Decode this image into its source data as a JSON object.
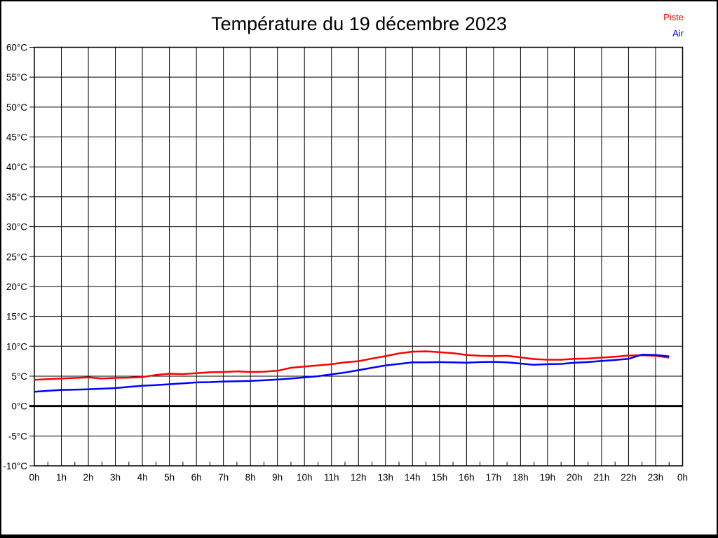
{
  "header": {
    "title": "Température du 19 décembre 2023"
  },
  "legend": {
    "piste": "Piste",
    "air": "Air",
    "piste_color": "#ff0000",
    "air_color": "#0000ff"
  },
  "chart_data": {
    "type": "line",
    "title": "Température du 19 décembre 2023",
    "xlabel": "",
    "ylabel": "",
    "xlim": [
      0,
      24
    ],
    "ylim": [
      -10,
      60
    ],
    "grid": true,
    "grid_color": "#000000",
    "zero_line_value": 0,
    "legend_position": "top-right",
    "x_tick_labels": [
      "0h",
      "1h",
      "2h",
      "3h",
      "4h",
      "5h",
      "6h",
      "7h",
      "8h",
      "9h",
      "10h",
      "11h",
      "12h",
      "13h",
      "14h",
      "15h",
      "16h",
      "17h",
      "18h",
      "19h",
      "20h",
      "21h",
      "22h",
      "23h",
      "0h"
    ],
    "x_tick_values": [
      0,
      1,
      2,
      3,
      4,
      5,
      6,
      7,
      8,
      9,
      10,
      11,
      12,
      13,
      14,
      15,
      16,
      17,
      18,
      19,
      20,
      21,
      22,
      23,
      24
    ],
    "x_minor_tick_step": 0.5,
    "y_tick_labels": [
      "60°C",
      "55°C",
      "50°C",
      "45°C",
      "40°C",
      "35°C",
      "30°C",
      "25°C",
      "20°C",
      "15°C",
      "10°C",
      "5°C",
      "0°C",
      "-5°C",
      "-10°C"
    ],
    "y_tick_values": [
      60,
      55,
      50,
      45,
      40,
      35,
      30,
      25,
      20,
      15,
      10,
      5,
      0,
      -5,
      -10
    ],
    "x": [
      0,
      0.5,
      1,
      1.5,
      2,
      2.5,
      3,
      3.5,
      4,
      4.5,
      5,
      5.5,
      6,
      6.5,
      7,
      7.5,
      8,
      8.5,
      9,
      9.5,
      10,
      10.5,
      11,
      11.5,
      12,
      12.5,
      13,
      13.5,
      14,
      14.5,
      15,
      15.5,
      16,
      16.5,
      17,
      17.5,
      18,
      18.5,
      19,
      19.5,
      20,
      20.5,
      21,
      21.5,
      22,
      22.5,
      23,
      23.5
    ],
    "series": [
      {
        "name": "Piste",
        "color": "#ff0000",
        "values": [
          4.4,
          4.5,
          4.6,
          4.7,
          4.8,
          4.6,
          4.7,
          4.75,
          4.85,
          5.2,
          5.4,
          5.35,
          5.5,
          5.65,
          5.7,
          5.8,
          5.7,
          5.75,
          5.9,
          6.4,
          6.6,
          6.8,
          7.0,
          7.3,
          7.5,
          7.95,
          8.35,
          8.8,
          9.1,
          9.15,
          9.0,
          8.85,
          8.55,
          8.4,
          8.35,
          8.4,
          8.15,
          7.85,
          7.75,
          7.75,
          7.9,
          7.95,
          8.1,
          8.25,
          8.45,
          8.5,
          8.4,
          8.1
        ]
      },
      {
        "name": "Air",
        "color": "#0000ff",
        "values": [
          2.4,
          2.55,
          2.7,
          2.75,
          2.8,
          2.9,
          3.0,
          3.2,
          3.4,
          3.5,
          3.65,
          3.8,
          3.95,
          4.0,
          4.1,
          4.15,
          4.2,
          4.3,
          4.45,
          4.6,
          4.8,
          5.0,
          5.3,
          5.6,
          6.0,
          6.4,
          6.8,
          7.05,
          7.3,
          7.3,
          7.35,
          7.3,
          7.25,
          7.35,
          7.4,
          7.3,
          7.1,
          6.9,
          7.0,
          7.05,
          7.25,
          7.35,
          7.55,
          7.7,
          7.9,
          8.6,
          8.55,
          8.3
        ]
      }
    ]
  }
}
